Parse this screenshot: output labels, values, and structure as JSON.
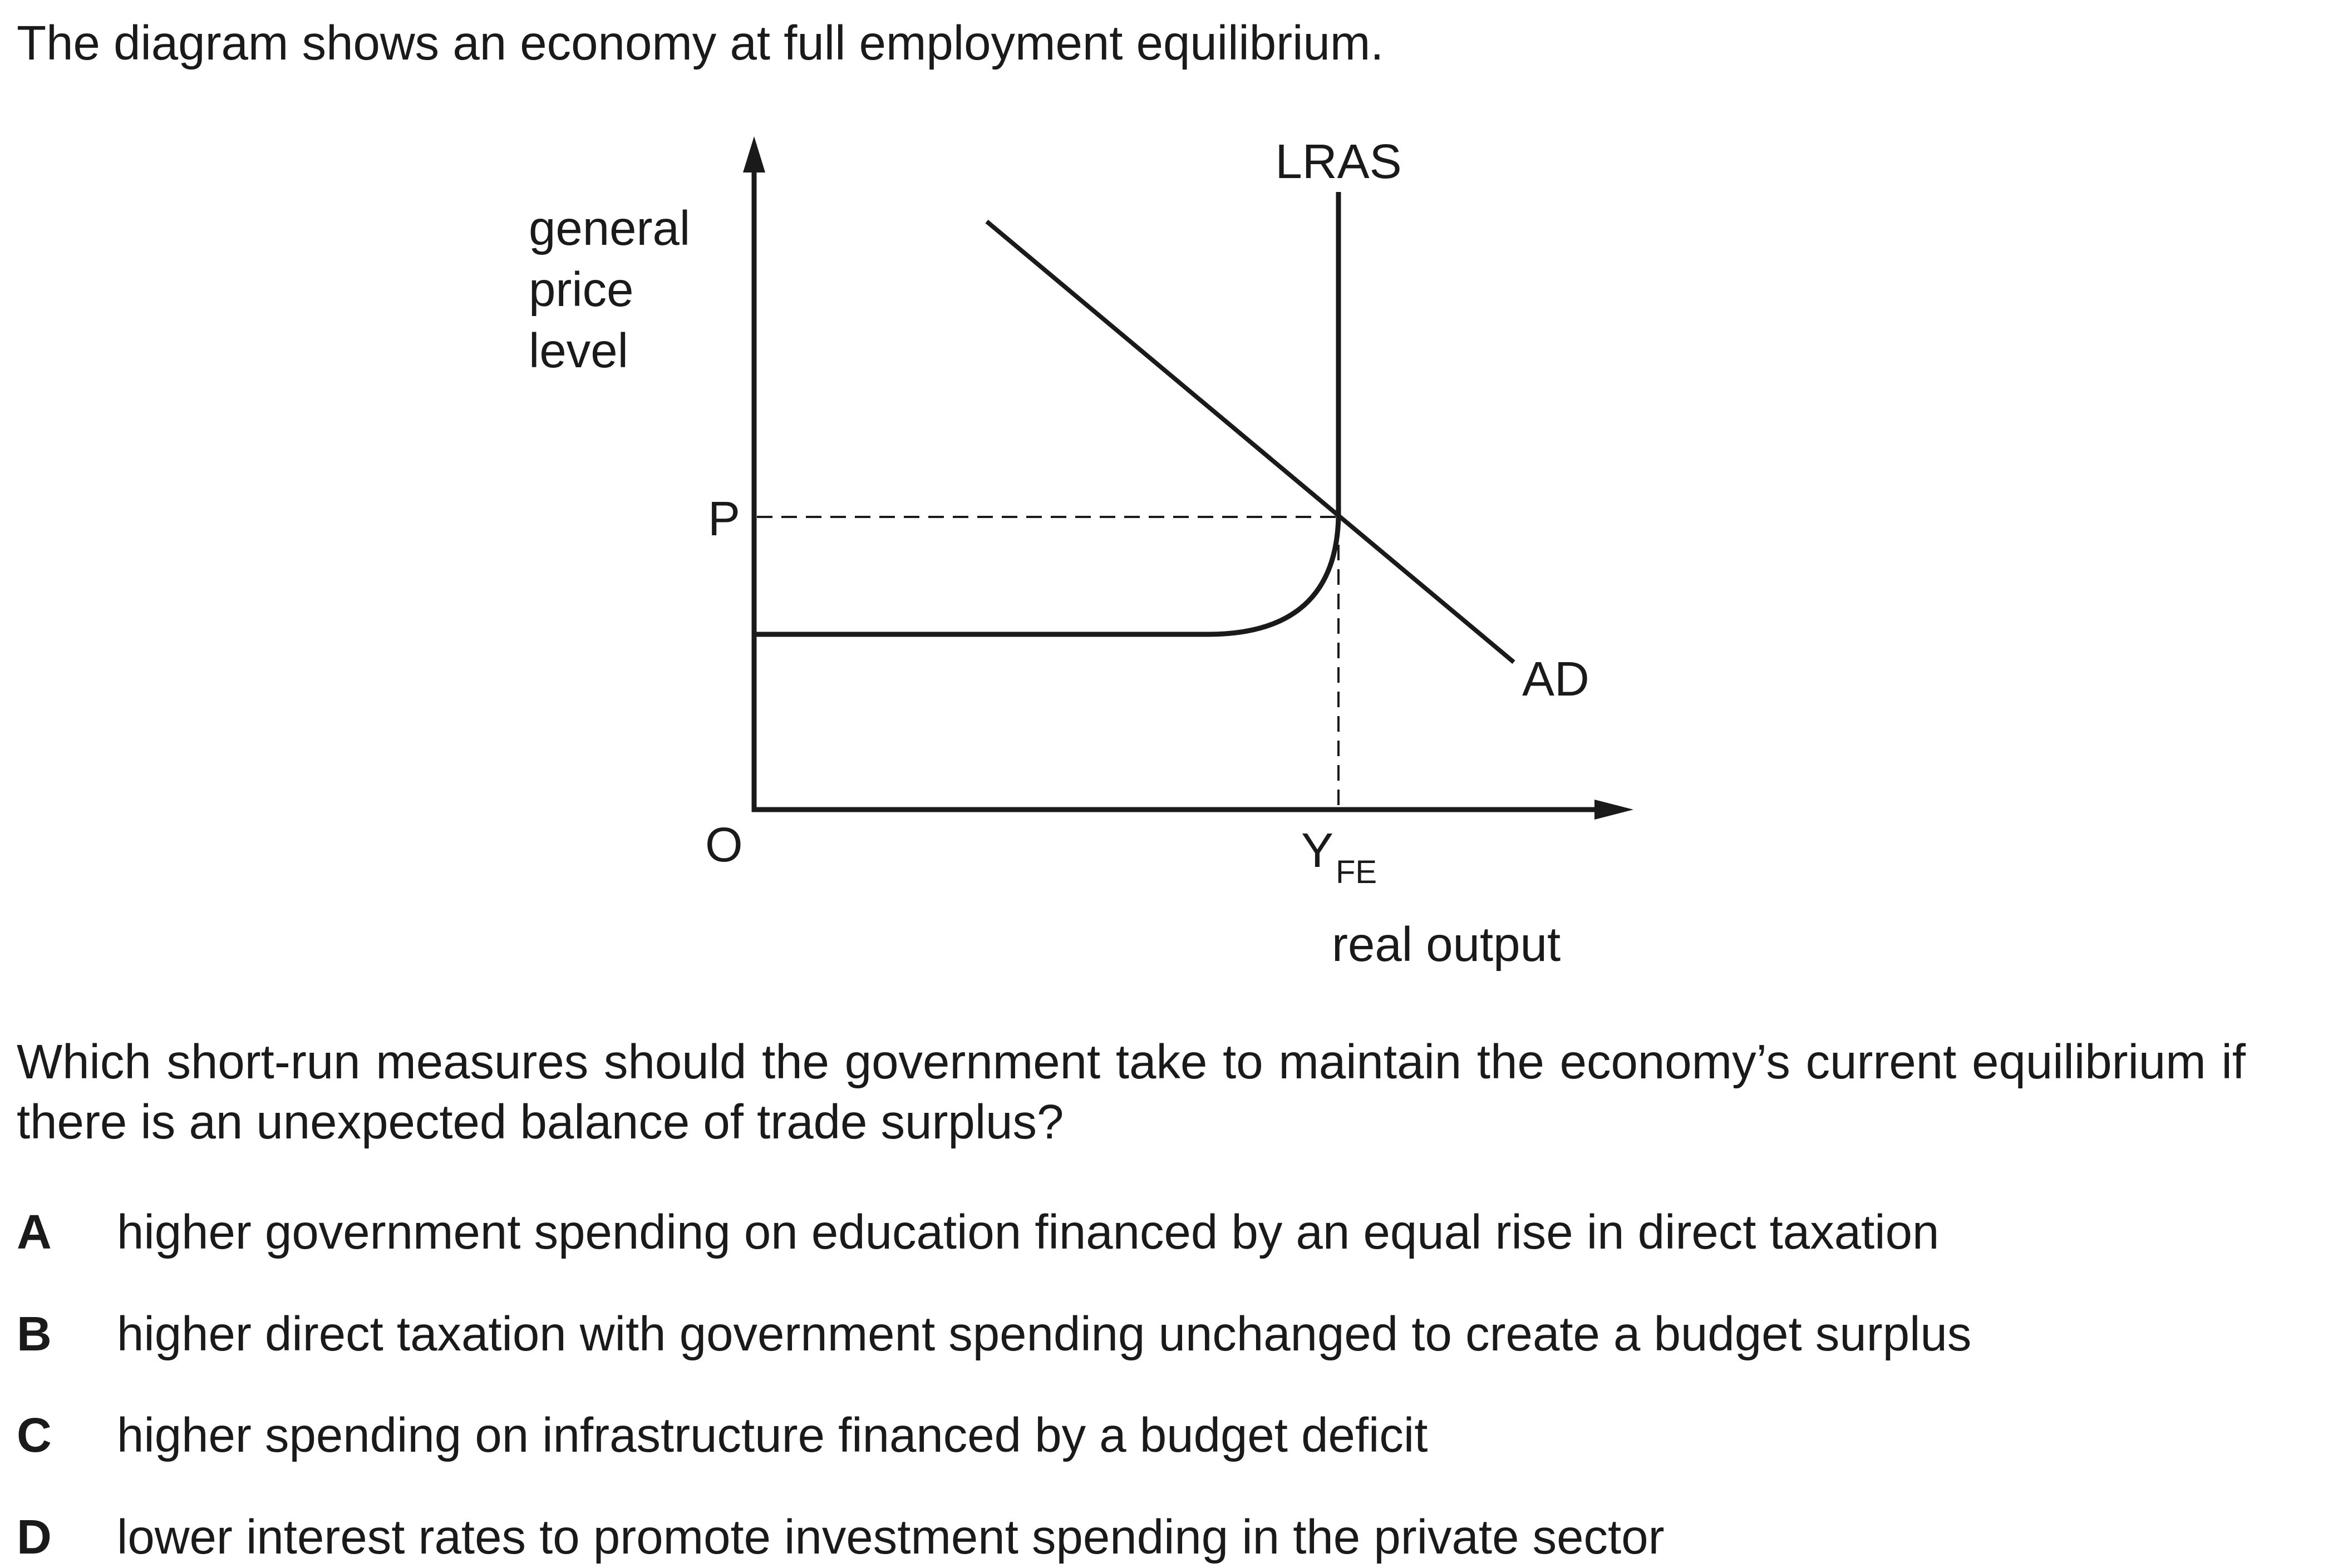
{
  "intro": "The diagram shows an economy at full employment equilibrium.",
  "diagram": {
    "y_axis_label": [
      "general",
      "price",
      "level"
    ],
    "x_axis_label": "real output",
    "origin_label": "O",
    "price_label": "P",
    "output_label_main": "Y",
    "output_label_sub": "FE",
    "curves": {
      "lras": "LRAS",
      "ad": "AD"
    }
  },
  "question": "Which short-run measures should the government take to maintain the economy’s current equilibrium if there is an unexpected balance of trade surplus?",
  "options": [
    {
      "letter": "A",
      "text": "higher government spending on education financed by an equal rise in direct taxation"
    },
    {
      "letter": "B",
      "text": "higher direct taxation with government spending unchanged to create a budget surplus"
    },
    {
      "letter": "C",
      "text": "higher spending on infrastructure financed by a budget deficit"
    },
    {
      "letter": "D",
      "text": "lower interest rates to promote investment spending in the private sector"
    }
  ]
}
